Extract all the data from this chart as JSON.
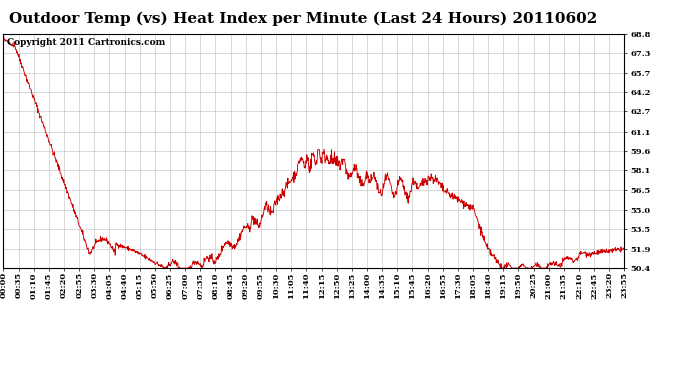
{
  "title": "Outdoor Temp (vs) Heat Index per Minute (Last 24 Hours) 20110602",
  "copyright_text": "Copyright 2011 Cartronics.com",
  "line_color": "#cc0000",
  "background_color": "#ffffff",
  "plot_bg_color": "#ffffff",
  "grid_color": "#bbbbbb",
  "y_ticks": [
    50.4,
    51.9,
    53.5,
    55.0,
    56.5,
    58.1,
    59.6,
    61.1,
    62.7,
    64.2,
    65.7,
    67.3,
    68.8
  ],
  "x_tick_labels": [
    "00:00",
    "00:35",
    "01:10",
    "01:45",
    "02:20",
    "02:55",
    "03:30",
    "04:05",
    "04:40",
    "05:15",
    "05:50",
    "06:25",
    "07:00",
    "07:35",
    "08:10",
    "08:45",
    "09:20",
    "09:55",
    "10:30",
    "11:05",
    "11:40",
    "12:15",
    "12:50",
    "13:25",
    "14:00",
    "14:35",
    "15:10",
    "15:45",
    "16:20",
    "16:55",
    "17:30",
    "18:05",
    "18:40",
    "19:15",
    "19:50",
    "20:25",
    "21:00",
    "21:35",
    "22:10",
    "22:45",
    "23:20",
    "23:55"
  ],
  "y_min": 50.4,
  "y_max": 68.8,
  "title_fontsize": 11,
  "tick_fontsize": 6,
  "copyright_fontsize": 6.5
}
